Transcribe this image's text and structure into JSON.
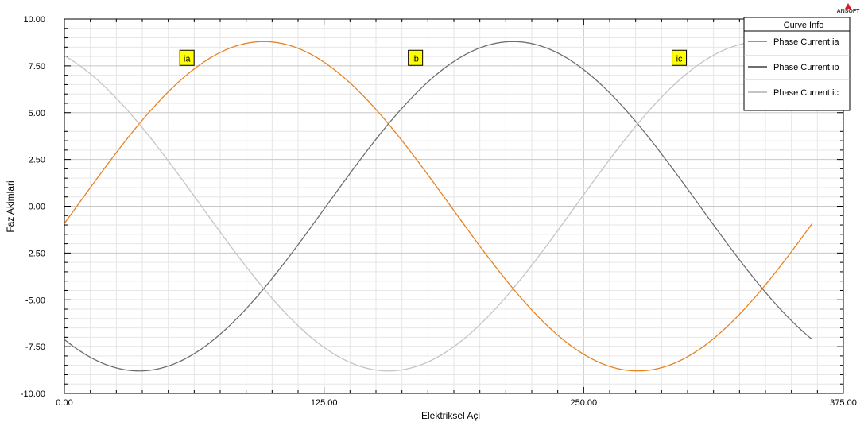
{
  "chart_data": {
    "type": "line",
    "title": "",
    "xlabel": "Elektriksel Açi",
    "ylabel": "Faz Akimlari",
    "xlim": [
      0,
      375
    ],
    "ylim": [
      -10,
      10
    ],
    "x_ticks": [
      "0.00",
      "125.00",
      "250.00",
      "375.00"
    ],
    "y_ticks": [
      "10.00",
      "7.50",
      "5.00",
      "2.50",
      "0.00",
      "-2.50",
      "-5.00",
      "-7.50",
      "-10.00"
    ],
    "grid": true,
    "legend": {
      "title": "Curve Info",
      "position": "top-right"
    },
    "series": [
      {
        "name": "Phase Current ia",
        "marker_label": "ia",
        "color": "#e8821e",
        "amplitude": 8.8,
        "phase_deg": -6,
        "x_range": [
          0,
          360
        ],
        "x": [
          0,
          30,
          60,
          90,
          120,
          150,
          180,
          210,
          240,
          270,
          300,
          330,
          360
        ],
        "values": [
          -0.9,
          3.6,
          7.3,
          8.8,
          7.7,
          4.5,
          0,
          -4.5,
          -7.7,
          -8.8,
          -7.3,
          -3.6,
          -0.9
        ]
      },
      {
        "name": "Phase Current ib",
        "marker_label": "ib",
        "color": "#6e6e6e",
        "amplitude": 8.8,
        "phase_deg": -126,
        "x_range": [
          0,
          360
        ],
        "x": [
          0,
          30,
          60,
          90,
          120,
          150,
          180,
          210,
          240,
          270,
          300,
          330,
          360
        ],
        "values": [
          -7.1,
          -8.7,
          -7.6,
          -5.2,
          -0.9,
          3.6,
          7.3,
          8.8,
          7.7,
          4.5,
          0,
          -4.5,
          -7.1
        ]
      },
      {
        "name": "Phase Current ic",
        "marker_label": "ic",
        "color": "#c4c4c4",
        "amplitude": 8.8,
        "phase_deg": 114,
        "x_range": [
          0,
          360
        ],
        "x": [
          0,
          30,
          60,
          90,
          120,
          150,
          180,
          210,
          240,
          270,
          300,
          330,
          360
        ],
        "values": [
          8.0,
          5.2,
          0.9,
          -3.6,
          -7.3,
          -8.8,
          -7.7,
          -4.5,
          0,
          4.5,
          7.7,
          8.8,
          8.0
        ]
      }
    ]
  },
  "logo": {
    "text": "ANSOFT"
  }
}
